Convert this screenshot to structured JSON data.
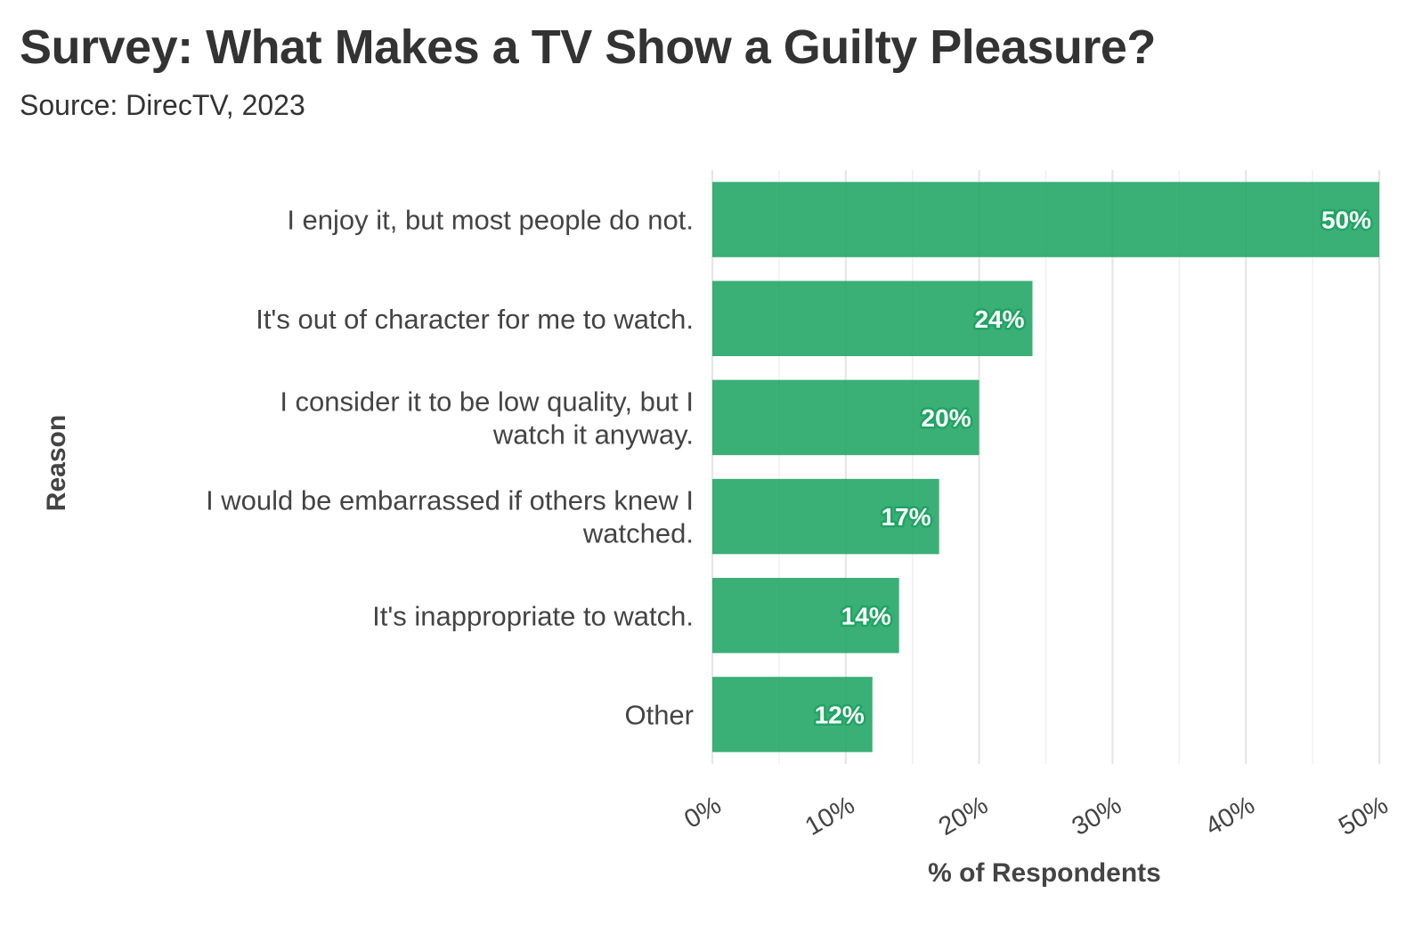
{
  "chart_data": {
    "type": "bar",
    "orientation": "horizontal",
    "title": "Survey: What Makes a TV Show a Guilty Pleasure?",
    "subtitle": "Source: DirecTV, 2023",
    "xlabel": "% of Respondents",
    "ylabel": "Reason",
    "xlim": [
      0,
      50
    ],
    "x_ticks": [
      0,
      10,
      20,
      30,
      40,
      50
    ],
    "x_tick_labels": [
      "0%",
      "10%",
      "20%",
      "30%",
      "40%",
      "50%"
    ],
    "grid": true,
    "legend": "none",
    "bar_color": "#1fa463",
    "bar_opacity": 0.88,
    "categories": [
      [
        "I enjoy it, but most people do not."
      ],
      [
        "It's out of character for me to watch."
      ],
      [
        "I consider it to be low quality, but I",
        "watch it anyway."
      ],
      [
        "I would be embarrassed if others knew I",
        "watched."
      ],
      [
        "It's inappropriate to watch."
      ],
      [
        "Other"
      ]
    ],
    "values": [
      50,
      24,
      20,
      17,
      14,
      12
    ],
    "data_labels": [
      "50%",
      "24%",
      "20%",
      "17%",
      "14%",
      "12%"
    ]
  }
}
